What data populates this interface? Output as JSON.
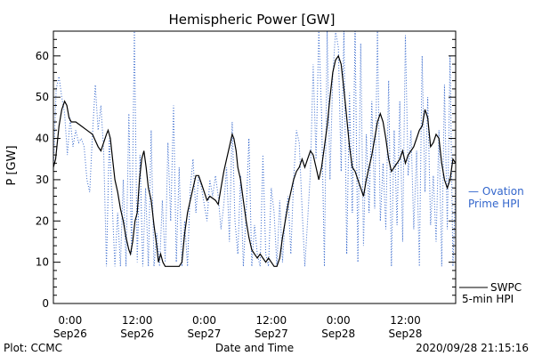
{
  "chart_data": {
    "type": "line",
    "title": "Hemispheric Power [GW]",
    "ylabel": "P [GW]",
    "xlabel": "Date and Time",
    "ylim": [
      0,
      66
    ],
    "xlim_hours": [
      -3,
      69
    ],
    "yticks": [
      0,
      10,
      20,
      30,
      40,
      50,
      60
    ],
    "xticks": [
      {
        "hour": 0,
        "time": "0:00",
        "date": "Sep26"
      },
      {
        "hour": 12,
        "time": "12:00",
        "date": "Sep26"
      },
      {
        "hour": 24,
        "time": "0:00",
        "date": "Sep27"
      },
      {
        "hour": 36,
        "time": "12:00",
        "date": "Sep27"
      },
      {
        "hour": 48,
        "time": "0:00",
        "date": "Sep28"
      },
      {
        "hour": 60,
        "time": "12:00",
        "date": "Sep28"
      }
    ],
    "x_minor_step_hours": 2,
    "y_minor_step": 2,
    "series": [
      {
        "name": "SWPC 5-min HPI",
        "legend_lines": [
          "SWPC",
          "5-min HPI"
        ],
        "color": "#000000",
        "style": "solid",
        "points": [
          [
            -3,
            33
          ],
          [
            -2.6,
            35
          ],
          [
            -2,
            43
          ],
          [
            -1.5,
            47
          ],
          [
            -1,
            49
          ],
          [
            -0.6,
            48
          ],
          [
            -0.2,
            45
          ],
          [
            0.2,
            44
          ],
          [
            1,
            44
          ],
          [
            2,
            43
          ],
          [
            3,
            42
          ],
          [
            4,
            41
          ],
          [
            5,
            38
          ],
          [
            5.5,
            37
          ],
          [
            6,
            39
          ],
          [
            6.5,
            41
          ],
          [
            6.8,
            42
          ],
          [
            7.2,
            40
          ],
          [
            7.6,
            35
          ],
          [
            8,
            30
          ],
          [
            8.5,
            27
          ],
          [
            9,
            23
          ],
          [
            9.5,
            20
          ],
          [
            10,
            16
          ],
          [
            10.5,
            13
          ],
          [
            10.8,
            12
          ],
          [
            11.2,
            15
          ],
          [
            11.6,
            20
          ],
          [
            12,
            22
          ],
          [
            12.4,
            30
          ],
          [
            12.8,
            35
          ],
          [
            13.2,
            37
          ],
          [
            13.6,
            33
          ],
          [
            14,
            28
          ],
          [
            14.5,
            25
          ],
          [
            15,
            19
          ],
          [
            15.5,
            14
          ],
          [
            15.8,
            10
          ],
          [
            16.2,
            12
          ],
          [
            16.6,
            10
          ],
          [
            17,
            9
          ],
          [
            18,
            9
          ],
          [
            19,
            9
          ],
          [
            19.5,
            9
          ],
          [
            20,
            10
          ],
          [
            20.5,
            17
          ],
          [
            21,
            22
          ],
          [
            21.5,
            25
          ],
          [
            22,
            28
          ],
          [
            22.5,
            31
          ],
          [
            23,
            31
          ],
          [
            23.5,
            29
          ],
          [
            24,
            27
          ],
          [
            24.5,
            25
          ],
          [
            25,
            26
          ],
          [
            26,
            25
          ],
          [
            26.5,
            24
          ],
          [
            27,
            28
          ],
          [
            27.5,
            32
          ],
          [
            28,
            35
          ],
          [
            28.5,
            38
          ],
          [
            29,
            41
          ],
          [
            29.3,
            40
          ],
          [
            29.7,
            37
          ],
          [
            30,
            33
          ],
          [
            30.5,
            30
          ],
          [
            31,
            25
          ],
          [
            31.5,
            20
          ],
          [
            32,
            16
          ],
          [
            32.5,
            13
          ],
          [
            33,
            12
          ],
          [
            33.5,
            11
          ],
          [
            34,
            12
          ],
          [
            34.5,
            11
          ],
          [
            35,
            10
          ],
          [
            35.5,
            11
          ],
          [
            36,
            10
          ],
          [
            36.5,
            9
          ],
          [
            37,
            9
          ],
          [
            37.5,
            11
          ],
          [
            38,
            16
          ],
          [
            38.5,
            20
          ],
          [
            39,
            24
          ],
          [
            39.5,
            27
          ],
          [
            40,
            30
          ],
          [
            40.5,
            32
          ],
          [
            41,
            33
          ],
          [
            41.5,
            35
          ],
          [
            42,
            33
          ],
          [
            42.5,
            35
          ],
          [
            43,
            37
          ],
          [
            43.5,
            36
          ],
          [
            44,
            33
          ],
          [
            44.5,
            30
          ],
          [
            45,
            33
          ],
          [
            45.5,
            38
          ],
          [
            46,
            43
          ],
          [
            46.5,
            50
          ],
          [
            47,
            56
          ],
          [
            47.5,
            59
          ],
          [
            48,
            60
          ],
          [
            48.5,
            58
          ],
          [
            49,
            52
          ],
          [
            49.5,
            45
          ],
          [
            50,
            38
          ],
          [
            50.5,
            33
          ],
          [
            51,
            32
          ],
          [
            51.5,
            30
          ],
          [
            52,
            28
          ],
          [
            52.5,
            26
          ],
          [
            53,
            30
          ],
          [
            53.5,
            33
          ],
          [
            54,
            36
          ],
          [
            54.5,
            40
          ],
          [
            55,
            44
          ],
          [
            55.5,
            46
          ],
          [
            56,
            44
          ],
          [
            56.5,
            40
          ],
          [
            57,
            35
          ],
          [
            57.5,
            32
          ],
          [
            58,
            33
          ],
          [
            58.5,
            34
          ],
          [
            59,
            35
          ],
          [
            59.5,
            37
          ],
          [
            60,
            34
          ],
          [
            60.5,
            36
          ],
          [
            61,
            37
          ],
          [
            61.5,
            38
          ],
          [
            62,
            40
          ],
          [
            62.5,
            42
          ],
          [
            63,
            43
          ],
          [
            63.5,
            47
          ],
          [
            64,
            45
          ],
          [
            64.5,
            38
          ],
          [
            65,
            39
          ],
          [
            65.5,
            41
          ],
          [
            66,
            40
          ],
          [
            66.5,
            34
          ],
          [
            67,
            30
          ],
          [
            67.5,
            28
          ],
          [
            68,
            30
          ],
          [
            68.5,
            35
          ],
          [
            69,
            34
          ]
        ]
      },
      {
        "name": "Ovation Prime HPI",
        "legend_lines": [
          "— Ovation",
          "Prime HPI"
        ],
        "color": "#3366cc",
        "style": "dotted",
        "points": [
          [
            -3,
            32
          ],
          [
            -2.5,
            52
          ],
          [
            -2,
            55
          ],
          [
            -1.5,
            50
          ],
          [
            -1,
            46
          ],
          [
            -0.5,
            36
          ],
          [
            0,
            45
          ],
          [
            0.5,
            38
          ],
          [
            1,
            42
          ],
          [
            1.5,
            39
          ],
          [
            2,
            40
          ],
          [
            2.5,
            38
          ],
          [
            3,
            30
          ],
          [
            3.5,
            27
          ],
          [
            4,
            41
          ],
          [
            4.5,
            53
          ],
          [
            5,
            42
          ],
          [
            5.5,
            48
          ],
          [
            6,
            37
          ],
          [
            6.5,
            9
          ],
          [
            7,
            40
          ],
          [
            7.5,
            25
          ],
          [
            8,
            9
          ],
          [
            8.5,
            22
          ],
          [
            9,
            9
          ],
          [
            9.5,
            30
          ],
          [
            10,
            9
          ],
          [
            10.5,
            46
          ],
          [
            11,
            12
          ],
          [
            11.5,
            66
          ],
          [
            12,
            10
          ],
          [
            12.5,
            36
          ],
          [
            13,
            9
          ],
          [
            13.5,
            28
          ],
          [
            14,
            9
          ],
          [
            14.5,
            42
          ],
          [
            15,
            9
          ],
          [
            15.5,
            17
          ],
          [
            16,
            9
          ],
          [
            16.5,
            25
          ],
          [
            17,
            10
          ],
          [
            17.5,
            39
          ],
          [
            18,
            20
          ],
          [
            18.5,
            48
          ],
          [
            19,
            10
          ],
          [
            19.5,
            33
          ],
          [
            20,
            9
          ],
          [
            20.5,
            20
          ],
          [
            21,
            9
          ],
          [
            21.5,
            28
          ],
          [
            22,
            35
          ],
          [
            22.5,
            22
          ],
          [
            23,
            31
          ],
          [
            23.5,
            28
          ],
          [
            24,
            24
          ],
          [
            24.5,
            20
          ],
          [
            25,
            30
          ],
          [
            25.5,
            26
          ],
          [
            26,
            31
          ],
          [
            26.5,
            26
          ],
          [
            27,
            18
          ],
          [
            27.5,
            24
          ],
          [
            28,
            33
          ],
          [
            28.5,
            15
          ],
          [
            29,
            44
          ],
          [
            29.5,
            20
          ],
          [
            30,
            12
          ],
          [
            30.5,
            31
          ],
          [
            31,
            9
          ],
          [
            31.5,
            22
          ],
          [
            32,
            40
          ],
          [
            32.5,
            9
          ],
          [
            33,
            19
          ],
          [
            33.5,
            12
          ],
          [
            34,
            9
          ],
          [
            34.5,
            36
          ],
          [
            35,
            12
          ],
          [
            35.5,
            9
          ],
          [
            36,
            28
          ],
          [
            36.5,
            22
          ],
          [
            37,
            9
          ],
          [
            37.5,
            25
          ],
          [
            38,
            10
          ],
          [
            38.5,
            21
          ],
          [
            39,
            26
          ],
          [
            39.5,
            12
          ],
          [
            40,
            30
          ],
          [
            40.5,
            42
          ],
          [
            41,
            39
          ],
          [
            41.5,
            23
          ],
          [
            42,
            9
          ],
          [
            42.5,
            20
          ],
          [
            43,
            32
          ],
          [
            43.5,
            58
          ],
          [
            44,
            35
          ],
          [
            44.5,
            66
          ],
          [
            45,
            46
          ],
          [
            45.5,
            9
          ],
          [
            46,
            66
          ],
          [
            46.5,
            30
          ],
          [
            47,
            55
          ],
          [
            47.5,
            66
          ],
          [
            48,
            62
          ],
          [
            48.5,
            32
          ],
          [
            49,
            66
          ],
          [
            49.5,
            12
          ],
          [
            50,
            51
          ],
          [
            50.5,
            22
          ],
          [
            51,
            66
          ],
          [
            51.5,
            10
          ],
          [
            52,
            63
          ],
          [
            52.5,
            14
          ],
          [
            53,
            41
          ],
          [
            53.5,
            22
          ],
          [
            54,
            49
          ],
          [
            54.5,
            23
          ],
          [
            55,
            66
          ],
          [
            55.5,
            20
          ],
          [
            56,
            34
          ],
          [
            56.5,
            18
          ],
          [
            57,
            54
          ],
          [
            57.5,
            9
          ],
          [
            58,
            42
          ],
          [
            58.5,
            19
          ],
          [
            59,
            49
          ],
          [
            59.5,
            15
          ],
          [
            60,
            65
          ],
          [
            60.5,
            31
          ],
          [
            61,
            42
          ],
          [
            61.5,
            18
          ],
          [
            62,
            37
          ],
          [
            62.5,
            9
          ],
          [
            63,
            60
          ],
          [
            63.5,
            27
          ],
          [
            64,
            50
          ],
          [
            64.5,
            19
          ],
          [
            65,
            31
          ],
          [
            65.5,
            15
          ],
          [
            66,
            42
          ],
          [
            66.5,
            9
          ],
          [
            67,
            53
          ],
          [
            67.5,
            18
          ],
          [
            68,
            60
          ],
          [
            68.5,
            9
          ],
          [
            69,
            29
          ]
        ]
      }
    ]
  },
  "footer": {
    "plot_credit": "Plot: CCMC",
    "timestamp": "2020/09/28 21:15:16"
  }
}
